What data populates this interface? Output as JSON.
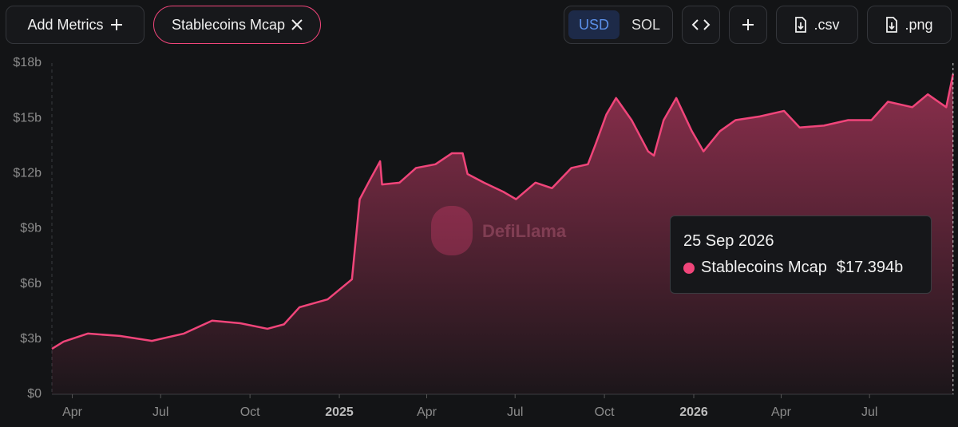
{
  "toolbar": {
    "add_metrics": "Add Metrics",
    "metric": "Stablecoins Mcap",
    "currencies": [
      "USD",
      "SOL"
    ],
    "csv": ".csv",
    "png": ".png"
  },
  "watermark": "DefiLlama",
  "chart_data": {
    "type": "area",
    "x": [
      "2024-03-11",
      "2024-03-23",
      "2024-04-17",
      "2024-05-20",
      "2024-06-22",
      "2024-07-25",
      "2024-08-23",
      "2024-09-21",
      "2024-10-19",
      "2024-11-05",
      "2024-11-21",
      "2024-12-20",
      "2025-01-14",
      "2025-01-22",
      "2025-02-01",
      "2025-02-12",
      "2025-02-14",
      "2025-03-04",
      "2025-03-21",
      "2025-04-10",
      "2025-04-27",
      "2025-05-08",
      "2025-05-13",
      "2025-05-30",
      "2025-06-19",
      "2025-07-02",
      "2025-07-22",
      "2025-08-08",
      "2025-08-28",
      "2025-09-14",
      "2025-09-22",
      "2025-10-03",
      "2025-10-13",
      "2025-10-29",
      "2025-11-15",
      "2025-11-21",
      "2025-12-01",
      "2025-12-14",
      "2025-12-30",
      "2026-01-11",
      "2026-01-28",
      "2026-02-13",
      "2026-03-10",
      "2026-04-04",
      "2026-04-20",
      "2026-05-15",
      "2026-06-09",
      "2026-07-03",
      "2026-07-20",
      "2026-08-14",
      "2026-08-30",
      "2026-09-18",
      "2026-09-25"
    ],
    "series": [
      {
        "name": "Stablecoins Mcap",
        "color": "#f0457a",
        "values": [
          2.47,
          2.86,
          3.3,
          3.17,
          2.9,
          3.3,
          4.0,
          3.86,
          3.56,
          3.8,
          4.73,
          5.16,
          6.25,
          10.6,
          11.6,
          12.66,
          11.4,
          11.5,
          12.3,
          12.5,
          13.1,
          13.1,
          11.97,
          11.5,
          11.0,
          10.6,
          11.5,
          11.2,
          12.3,
          12.5,
          13.6,
          15.2,
          16.1,
          14.9,
          13.2,
          12.97,
          14.9,
          16.1,
          14.3,
          13.2,
          14.3,
          14.9,
          15.1,
          15.4,
          14.5,
          14.6,
          14.9,
          14.9,
          15.9,
          15.6,
          16.3,
          15.6,
          17.394
        ]
      }
    ],
    "xlim": [
      "2024-03-11",
      "2026-09-26"
    ],
    "xticks": [
      {
        "value": "2024-04-01",
        "label": "Apr"
      },
      {
        "value": "2024-07-01",
        "label": "Jul"
      },
      {
        "value": "2024-10-01",
        "label": "Oct"
      },
      {
        "value": "2025-01-01",
        "label": "2025"
      },
      {
        "value": "2025-04-01",
        "label": "Apr"
      },
      {
        "value": "2025-07-01",
        "label": "Jul"
      },
      {
        "value": "2025-10-01",
        "label": "Oct"
      },
      {
        "value": "2026-01-01",
        "label": "2026"
      },
      {
        "value": "2026-04-01",
        "label": "Apr"
      },
      {
        "value": "2026-07-01",
        "label": "Jul"
      }
    ],
    "ylim": [
      0,
      18
    ],
    "yticks": [
      {
        "value": 0,
        "label": "$0"
      },
      {
        "value": 3,
        "label": "$3b"
      },
      {
        "value": 6,
        "label": "$6b"
      },
      {
        "value": 9,
        "label": "$9b"
      },
      {
        "value": 12,
        "label": "$12b"
      },
      {
        "value": 15,
        "label": "$15b"
      },
      {
        "value": 18,
        "label": "$18b"
      }
    ],
    "grid": false,
    "tooltip": {
      "date": "25 Sep 2026",
      "series": "Stablecoins Mcap",
      "value_label": "$17.394b"
    }
  }
}
